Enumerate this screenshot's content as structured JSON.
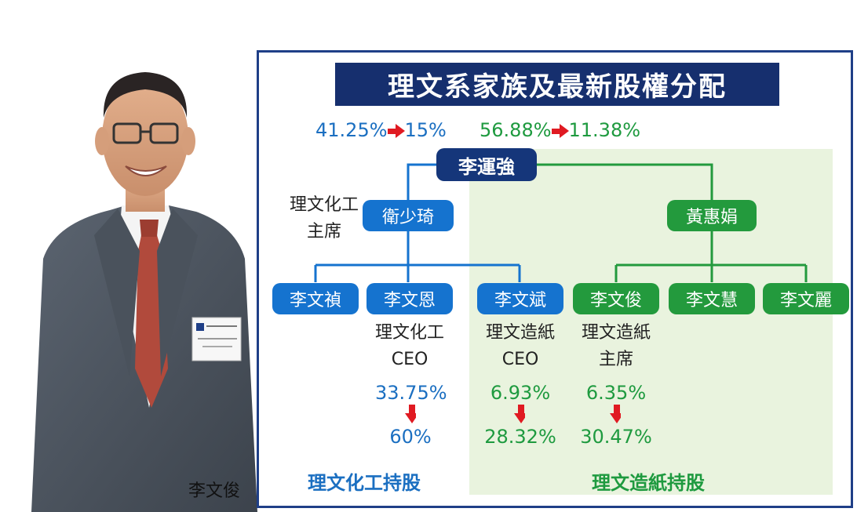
{
  "title": "理文系家族及最新股權分配",
  "photo_caption": "李文俊",
  "top_left": {
    "from": "41.25%",
    "to": "15%"
  },
  "top_right": {
    "from": "56.88%",
    "to": "11.38%"
  },
  "root": "李運強",
  "spouse_left": "衛少琦",
  "spouse_left_role": [
    "理文化工",
    "主席"
  ],
  "spouse_right": "黃惠娟",
  "children": [
    "李文禎",
    "李文恩",
    "李文斌",
    "李文俊",
    "李文慧",
    "李文麗"
  ],
  "roles": [
    {
      "line1": "理文化工",
      "line2": "CEO"
    },
    {
      "line1": "理文造紙",
      "line2": "CEO"
    },
    {
      "line1": "理文造紙",
      "line2": "主席"
    }
  ],
  "holdings": [
    {
      "from": "33.75%",
      "to": "60%"
    },
    {
      "from": "6.93%",
      "to": "28.32%"
    },
    {
      "from": "6.35%",
      "to": "30.47%"
    }
  ],
  "footer_left": "理文化工持股",
  "footer_right": "理文造紙持股",
  "colors": {
    "navy": "#162f6e",
    "blue": "#1573cf",
    "green": "#239a3d",
    "red_arrow": "#e01a22",
    "green_bg": "#e9f3de"
  }
}
